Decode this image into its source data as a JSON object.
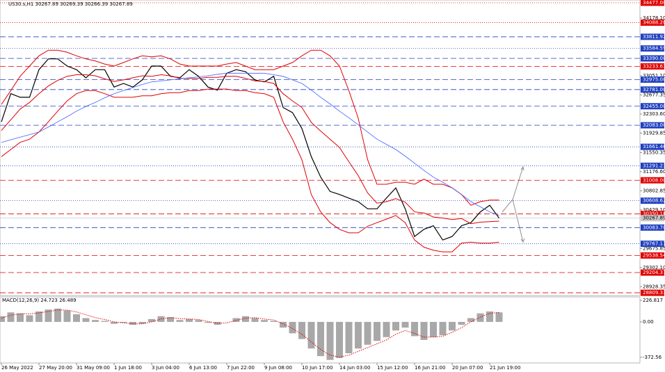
{
  "chart_data": [
    {
      "type": "line",
      "title": "US30.s,H1  30267.89 30269.39 30266.39 30267.89",
      "categories": [
        "26 May 2022",
        null,
        null,
        null,
        "27 May 20:00",
        null,
        null,
        null,
        "31 May 09:00",
        null,
        null,
        null,
        "1 Jun 18:00",
        null,
        null,
        null,
        "3 Jun 04:00",
        null,
        null,
        null,
        "6 Jun 13:00",
        null,
        null,
        null,
        "7 Jun 22:00",
        null,
        null,
        null,
        "9 Jun 08:00",
        null,
        null,
        null,
        "10 Jun 17:00",
        null,
        null,
        null,
        "14 Jun 03:00",
        null,
        null,
        null,
        "15 Jun 12:00",
        null,
        null,
        null,
        "16 Jun 21:00",
        null,
        null,
        null,
        "20 Jun 07:00",
        null,
        null,
        null,
        "21 Jun 19:00",
        null
      ],
      "ylim": [
        28756,
        34531
      ],
      "yticks": [
        {
          "value": 34178.1,
          "label": "34178.10"
        },
        {
          "value": 33051.1,
          "label": "33051.10"
        },
        32677.35,
        {
          "value": 32303.6,
          "label": "32303.60"
        },
        31929.85,
        31550.35,
        {
          "value": 31176.6,
          "label": "31176.60"
        },
        30802.85,
        {
          "value": 30429.1,
          "label": "30429.10"
        },
        29675.85,
        {
          "value": 29302.1,
          "label": "29302.10"
        },
        28928.35
      ],
      "levels": [
        {
          "value": 34477,
          "label": "34477.00",
          "color": "#e00000",
          "style": "dot"
        },
        {
          "value": 34088.2,
          "label": "34088.20",
          "color": "#e00000",
          "style": "dot"
        },
        {
          "value": 33811.92,
          "label": "33811.92",
          "color": "#2040c0",
          "style": "dash"
        },
        {
          "value": 33584.59,
          "label": "33584.59",
          "color": "#2040c0",
          "style": "dot"
        },
        {
          "value": 33390,
          "label": "33390.00",
          "color": "#2040c0",
          "style": "dash"
        },
        {
          "value": 33233.63,
          "label": "33233.63",
          "color": "#e00000",
          "style": "dash"
        },
        {
          "value": 32975,
          "label": "32975.00",
          "color": "#2040c0",
          "style": "dash"
        },
        {
          "value": 32781,
          "label": "32781.00",
          "color": "#2040c0",
          "style": "dash"
        },
        {
          "value": 32455,
          "label": "32455.00",
          "color": "#2040c0",
          "style": "dash"
        },
        {
          "value": 32083,
          "label": "32083.00",
          "color": "#2040c0",
          "style": "dash"
        },
        {
          "value": 31661.46,
          "label": "31661.46",
          "color": "#2040c0",
          "style": "dot"
        },
        {
          "value": 31291.23,
          "label": "31291.23",
          "color": "#2040c0",
          "style": "dot"
        },
        {
          "value": 31008,
          "label": "31008.00",
          "color": "#e00000",
          "style": "dash"
        },
        {
          "value": 30608.62,
          "label": "30608.62",
          "color": "#2040c0",
          "style": "dot"
        },
        {
          "value": 30350.18,
          "label": "30350.18",
          "color": "#e00000",
          "style": "dash"
        },
        {
          "value": 30267.89,
          "label": "30267.89",
          "color": "#c8c8c8",
          "style": "solid"
        },
        {
          "value": 30083.7,
          "label": "30083.70",
          "color": "#2040c0",
          "style": "dash"
        },
        {
          "value": 29767.17,
          "label": "29767.17",
          "color": "#2040c0",
          "style": "dot"
        },
        {
          "value": 29538.54,
          "label": "29538.54",
          "color": "#e00000",
          "style": "dash"
        },
        {
          "value": 29204.37,
          "label": "29204.37",
          "color": "#e00000",
          "style": "dash"
        },
        {
          "value": 28809.33,
          "label": "28809.33",
          "color": "#e00000",
          "style": "dash"
        }
      ],
      "series": [
        {
          "name": "Close",
          "color": "#000000",
          "width": 1.2,
          "values": [
            32150,
            32700,
            32630,
            32630,
            33170,
            33380,
            33380,
            33240,
            33170,
            33010,
            33170,
            33170,
            32830,
            32900,
            32830,
            32970,
            33240,
            33240,
            33040,
            33010,
            33170,
            33040,
            32830,
            32770,
            33100,
            33170,
            33130,
            32970,
            32930,
            33040,
            32430,
            32330,
            32020,
            31470,
            31070,
            30790,
            30730,
            30660,
            30590,
            30450,
            30450,
            30660,
            30860,
            30450,
            29910,
            30050,
            30120,
            29840,
            29910,
            30120,
            30180,
            30390,
            30520,
            30268
          ]
        },
        {
          "name": "Upper band",
          "color": "#e00000",
          "width": 1,
          "values": [
            32490,
            32760,
            33040,
            33240,
            33440,
            33550,
            33550,
            33510,
            33440,
            33380,
            33340,
            33280,
            33240,
            33310,
            33380,
            33440,
            33420,
            33440,
            33380,
            33280,
            33240,
            33240,
            33240,
            33240,
            33280,
            33310,
            33240,
            33170,
            33170,
            33170,
            33240,
            33310,
            33440,
            33550,
            33550,
            33440,
            33240,
            32760,
            32220,
            31410,
            30930,
            30930,
            30970,
            30970,
            30930,
            31030,
            30930,
            30930,
            30860,
            30730,
            30520,
            30590,
            30620,
            30620
          ]
        },
        {
          "name": "Middle band",
          "color": "#e00000",
          "width": 1,
          "values": [
            31980,
            32190,
            32400,
            32530,
            32700,
            32850,
            32960,
            33040,
            33070,
            33070,
            33050,
            32990,
            32940,
            32970,
            33010,
            33050,
            33040,
            33070,
            33050,
            33000,
            33000,
            33000,
            33020,
            33020,
            33040,
            33040,
            33000,
            32950,
            32940,
            32900,
            32700,
            32560,
            32430,
            32140,
            31970,
            31810,
            31650,
            31370,
            31100,
            30760,
            30560,
            30590,
            30650,
            30580,
            30390,
            30370,
            30290,
            30270,
            30240,
            30260,
            30160,
            30190,
            30200,
            30210
          ]
        },
        {
          "name": "Lower band",
          "color": "#e00000",
          "width": 1,
          "values": [
            31470,
            31610,
            31750,
            31810,
            31950,
            32150,
            32360,
            32560,
            32700,
            32760,
            32760,
            32700,
            32630,
            32630,
            32630,
            32660,
            32660,
            32700,
            32720,
            32720,
            32760,
            32760,
            32790,
            32790,
            32790,
            32760,
            32760,
            32720,
            32700,
            32630,
            32150,
            31810,
            31410,
            30730,
            30390,
            30180,
            30050,
            29980,
            29980,
            30110,
            30180,
            30250,
            30320,
            30180,
            29840,
            29700,
            29640,
            29610,
            29610,
            29780,
            29800,
            29780,
            29780,
            29800
          ]
        },
        {
          "name": "Moving average",
          "color": "#4060ff",
          "width": 0.8,
          "values": [
            31750,
            31800,
            31850,
            31900,
            31950,
            32050,
            32150,
            32250,
            32360,
            32450,
            32530,
            32620,
            32700,
            32760,
            32820,
            32880,
            32930,
            32950,
            32970,
            32990,
            33010,
            33030,
            33050,
            33080,
            33100,
            33100,
            33100,
            33100,
            33100,
            33070,
            33040,
            32970,
            32900,
            32770,
            32630,
            32500,
            32360,
            32230,
            32090,
            31950,
            31810,
            31710,
            31610,
            31480,
            31340,
            31200,
            31070,
            30970,
            30860,
            30730,
            30590,
            30490,
            30390,
            30320
          ]
        }
      ]
    },
    {
      "type": "bar",
      "title": "MACD(12,26,9) 24.723 26.489",
      "ylim": [
        -432,
        263
      ],
      "yticks": [
        226.817,
        {
          "value": 0,
          "label": "0.00"
        },
        -372.56
      ],
      "series": [
        {
          "name": "MACD",
          "color": "#a8a8a8",
          "style": "bar",
          "values": [
            60,
            100,
            90,
            70,
            110,
            130,
            140,
            120,
            80,
            40,
            20,
            10,
            -20,
            -10,
            -30,
            -20,
            30,
            60,
            50,
            20,
            30,
            20,
            -10,
            -30,
            0,
            40,
            60,
            40,
            20,
            10,
            -60,
            -120,
            -180,
            -280,
            -360,
            -400,
            -380,
            -330,
            -280,
            -240,
            -200,
            -160,
            -90,
            -60,
            -150,
            -190,
            -160,
            -140,
            -90,
            -30,
            40,
            90,
            110,
            100
          ]
        },
        {
          "name": "Signal",
          "color": "#e00000",
          "style": "dotted",
          "values": [
            40,
            70,
            85,
            85,
            95,
            110,
            125,
            125,
            105,
            75,
            45,
            25,
            0,
            -10,
            -20,
            -20,
            0,
            30,
            45,
            35,
            30,
            25,
            5,
            -15,
            -10,
            15,
            40,
            45,
            30,
            20,
            -20,
            -70,
            -130,
            -210,
            -290,
            -350,
            -370,
            -350,
            -310,
            -270,
            -230,
            -190,
            -130,
            -90,
            -120,
            -160,
            -160,
            -150,
            -110,
            -60,
            0,
            50,
            90,
            100
          ]
        }
      ]
    }
  ]
}
